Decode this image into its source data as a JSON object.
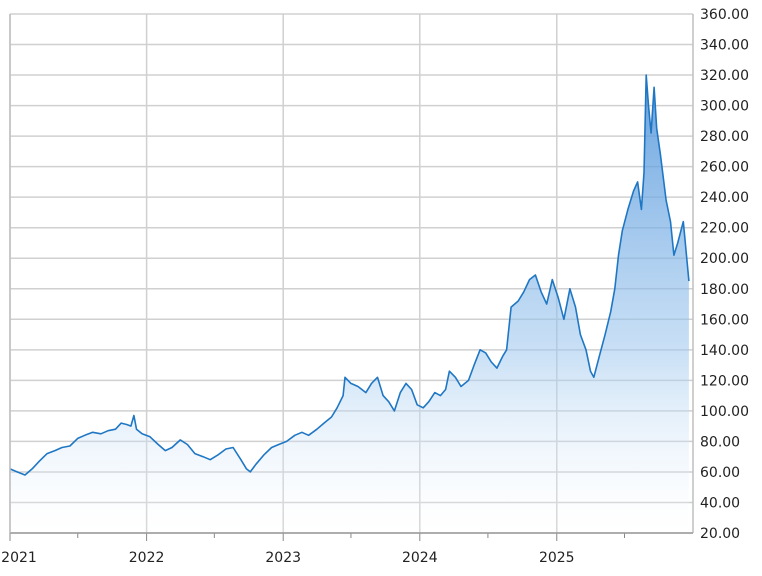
{
  "chart_data": {
    "type": "area",
    "title": "",
    "xlabel": "",
    "ylabel": "",
    "ylim": [
      20,
      360
    ],
    "y_axis_position": "right",
    "yticks": [
      "20.00",
      "40.00",
      "60.00",
      "80.00",
      "100.00",
      "120.00",
      "140.00",
      "160.00",
      "180.00",
      "200.00",
      "220.00",
      "240.00",
      "260.00",
      "280.00",
      "300.00",
      "320.00",
      "340.00",
      "360.00"
    ],
    "yticks_values": [
      20,
      40,
      60,
      80,
      100,
      120,
      140,
      160,
      180,
      200,
      220,
      240,
      260,
      280,
      300,
      320,
      340,
      360
    ],
    "xticks": [
      {
        "label": "2021",
        "x": "2021-01-01"
      },
      {
        "label": "2022",
        "x": "2022-01-01"
      },
      {
        "label": "2023",
        "x": "2023-01-01"
      },
      {
        "label": "2024",
        "x": "2024-01-01"
      },
      {
        "label": "2025",
        "x": "2025-01-01"
      }
    ],
    "xlim": [
      "2021-01-01",
      "2025-12-31"
    ],
    "grid": true,
    "series": [
      {
        "color": "#1f77c4",
        "points": [
          [
            "2021-01-01",
            62
          ],
          [
            "2021-01-20",
            60
          ],
          [
            "2021-02-10",
            58
          ],
          [
            "2021-03-01",
            62
          ],
          [
            "2021-03-20",
            67
          ],
          [
            "2021-04-10",
            72
          ],
          [
            "2021-05-01",
            74
          ],
          [
            "2021-05-20",
            76
          ],
          [
            "2021-06-10",
            77
          ],
          [
            "2021-07-01",
            82
          ],
          [
            "2021-07-20",
            84
          ],
          [
            "2021-08-10",
            86
          ],
          [
            "2021-09-01",
            85
          ],
          [
            "2021-09-20",
            87
          ],
          [
            "2021-10-10",
            88
          ],
          [
            "2021-10-25",
            92
          ],
          [
            "2021-11-10",
            91
          ],
          [
            "2021-11-20",
            90
          ],
          [
            "2021-11-28",
            97
          ],
          [
            "2021-12-05",
            88
          ],
          [
            "2021-12-20",
            85
          ],
          [
            "2022-01-10",
            83
          ],
          [
            "2022-02-01",
            78
          ],
          [
            "2022-02-20",
            74
          ],
          [
            "2022-03-10",
            76
          ],
          [
            "2022-04-01",
            81
          ],
          [
            "2022-04-20",
            78
          ],
          [
            "2022-05-10",
            72
          ],
          [
            "2022-06-01",
            70
          ],
          [
            "2022-06-20",
            68
          ],
          [
            "2022-07-10",
            71
          ],
          [
            "2022-08-01",
            75
          ],
          [
            "2022-08-20",
            76
          ],
          [
            "2022-09-10",
            68
          ],
          [
            "2022-09-25",
            62
          ],
          [
            "2022-10-05",
            60
          ],
          [
            "2022-10-20",
            65
          ],
          [
            "2022-11-10",
            71
          ],
          [
            "2022-12-01",
            76
          ],
          [
            "2022-12-20",
            78
          ],
          [
            "2023-01-10",
            80
          ],
          [
            "2023-02-01",
            84
          ],
          [
            "2023-02-20",
            86
          ],
          [
            "2023-03-10",
            84
          ],
          [
            "2023-04-01",
            88
          ],
          [
            "2023-04-20",
            92
          ],
          [
            "2023-05-10",
            96
          ],
          [
            "2023-05-25",
            102
          ],
          [
            "2023-06-10",
            110
          ],
          [
            "2023-06-15",
            122
          ],
          [
            "2023-07-01",
            118
          ],
          [
            "2023-07-20",
            116
          ],
          [
            "2023-08-10",
            112
          ],
          [
            "2023-08-25",
            118
          ],
          [
            "2023-09-10",
            122
          ],
          [
            "2023-09-25",
            110
          ],
          [
            "2023-10-10",
            106
          ],
          [
            "2023-10-25",
            100
          ],
          [
            "2023-11-10",
            112
          ],
          [
            "2023-11-25",
            118
          ],
          [
            "2023-12-10",
            114
          ],
          [
            "2023-12-25",
            104
          ],
          [
            "2024-01-10",
            102
          ],
          [
            "2024-01-25",
            106
          ],
          [
            "2024-02-10",
            112
          ],
          [
            "2024-02-25",
            110
          ],
          [
            "2024-03-10",
            114
          ],
          [
            "2024-03-20",
            126
          ],
          [
            "2024-04-05",
            122
          ],
          [
            "2024-04-20",
            116
          ],
          [
            "2024-05-10",
            120
          ],
          [
            "2024-05-25",
            130
          ],
          [
            "2024-06-10",
            140
          ],
          [
            "2024-06-25",
            138
          ],
          [
            "2024-07-10",
            132
          ],
          [
            "2024-07-25",
            128
          ],
          [
            "2024-08-10",
            136
          ],
          [
            "2024-08-20",
            140
          ],
          [
            "2024-09-01",
            168
          ],
          [
            "2024-09-20",
            172
          ],
          [
            "2024-10-05",
            178
          ],
          [
            "2024-10-20",
            186
          ],
          [
            "2024-11-05",
            189
          ],
          [
            "2024-11-20",
            178
          ],
          [
            "2024-12-05",
            170
          ],
          [
            "2024-12-20",
            186
          ],
          [
            "2025-01-05",
            174
          ],
          [
            "2025-01-20",
            160
          ],
          [
            "2025-02-05",
            180
          ],
          [
            "2025-02-20",
            168
          ],
          [
            "2025-03-05",
            150
          ],
          [
            "2025-03-20",
            140
          ],
          [
            "2025-04-01",
            126
          ],
          [
            "2025-04-10",
            122
          ],
          [
            "2025-04-25",
            136
          ],
          [
            "2025-05-10",
            150
          ],
          [
            "2025-05-25",
            165
          ],
          [
            "2025-06-05",
            180
          ],
          [
            "2025-06-15",
            202
          ],
          [
            "2025-06-25",
            218
          ],
          [
            "2025-07-10",
            232
          ],
          [
            "2025-07-25",
            244
          ],
          [
            "2025-08-05",
            250
          ],
          [
            "2025-08-15",
            232
          ],
          [
            "2025-08-22",
            256
          ],
          [
            "2025-08-28",
            320
          ],
          [
            "2025-09-03",
            300
          ],
          [
            "2025-09-10",
            282
          ],
          [
            "2025-09-18",
            312
          ],
          [
            "2025-09-25",
            285
          ],
          [
            "2025-10-05",
            268
          ],
          [
            "2025-10-20",
            238
          ],
          [
            "2025-11-01",
            224
          ],
          [
            "2025-11-10",
            202
          ],
          [
            "2025-11-20",
            210
          ],
          [
            "2025-12-05",
            224
          ],
          [
            "2025-12-20",
            185
          ]
        ]
      }
    ]
  }
}
